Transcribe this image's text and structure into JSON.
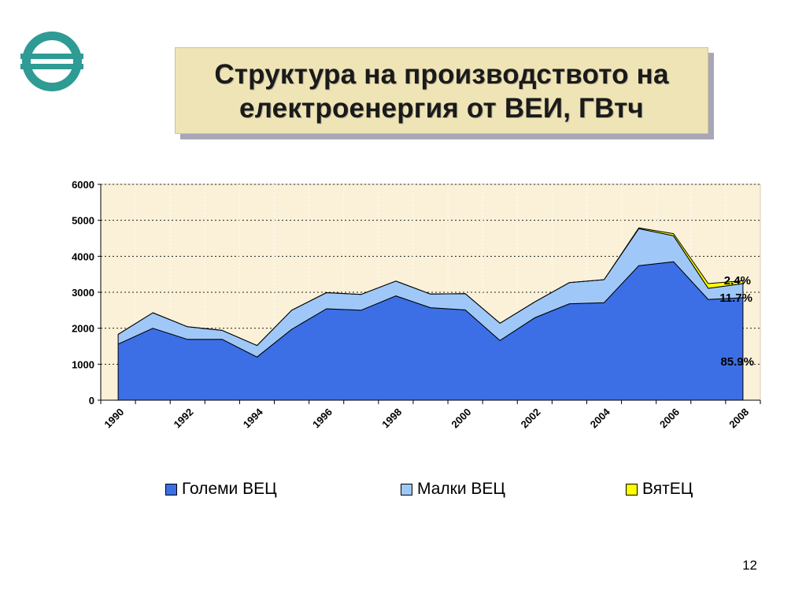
{
  "title": {
    "line1": "Структура на производството на",
    "line2": "електроенергия от ВЕИ, ГВтч"
  },
  "colors": {
    "large_hpp": "#3c6fe6",
    "small_hpp": "#9fc8f8",
    "wind": "#ffff00",
    "plot_bg": "#fbf1d8",
    "logo": "#2e9b94"
  },
  "logo_icon": "company-logo-icon",
  "page_number": "12",
  "chart_data": {
    "type": "area",
    "stacked": true,
    "x": [
      1990,
      1991,
      1992,
      1993,
      1994,
      1995,
      1996,
      1997,
      1998,
      1999,
      2000,
      2001,
      2002,
      2003,
      2004,
      2005,
      2006,
      2007,
      2008
    ],
    "x_tick_labels": [
      "1990",
      "1992",
      "1994",
      "1996",
      "1998",
      "2000",
      "2002",
      "2004",
      "2006",
      "2008"
    ],
    "series": [
      {
        "name": "Големи ВЕЦ",
        "values": [
          1560,
          2000,
          1690,
          1690,
          1200,
          1970,
          2540,
          2500,
          2900,
          2570,
          2510,
          1660,
          2290,
          2680,
          2710,
          3740,
          3850,
          2800,
          2850
        ]
      },
      {
        "name": "Малки ВЕЦ",
        "values": [
          270,
          430,
          350,
          250,
          320,
          530,
          450,
          440,
          410,
          380,
          450,
          480,
          440,
          590,
          640,
          1030,
          720,
          310,
          390
        ]
      },
      {
        "name": "ВятЕЦ",
        "values": [
          0,
          0,
          0,
          0,
          0,
          0,
          0,
          0,
          0,
          0,
          0,
          0,
          0,
          0,
          0,
          20,
          60,
          130,
          80
        ]
      }
    ],
    "ylim": [
      0,
      6000
    ],
    "yticks": [
      0,
      1000,
      2000,
      3000,
      4000,
      5000,
      6000
    ],
    "grid": true,
    "legend_position": "bottom",
    "annotations": [
      "2.4%",
      "11.7%",
      "85.9%"
    ]
  }
}
